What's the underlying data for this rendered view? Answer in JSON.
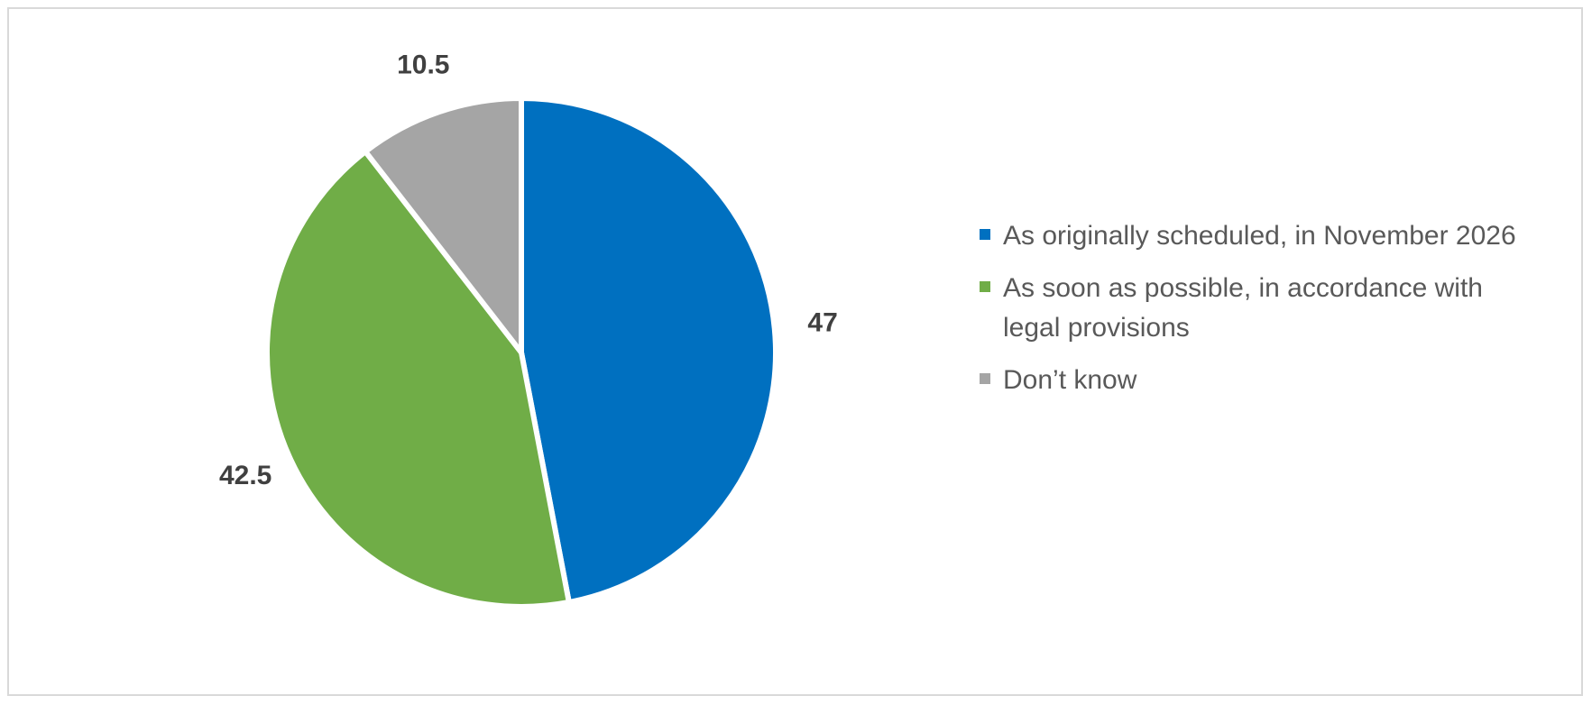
{
  "chart_data": {
    "type": "pie",
    "categories": [
      "As originally scheduled, in November 2026",
      "As soon as possible, in accordance with legal provisions",
      "Don’t know"
    ],
    "values": [
      47,
      42.5,
      10.5
    ],
    "colors": [
      "#0070c0",
      "#70ad47",
      "#a5a5a5"
    ],
    "legend": "right"
  }
}
